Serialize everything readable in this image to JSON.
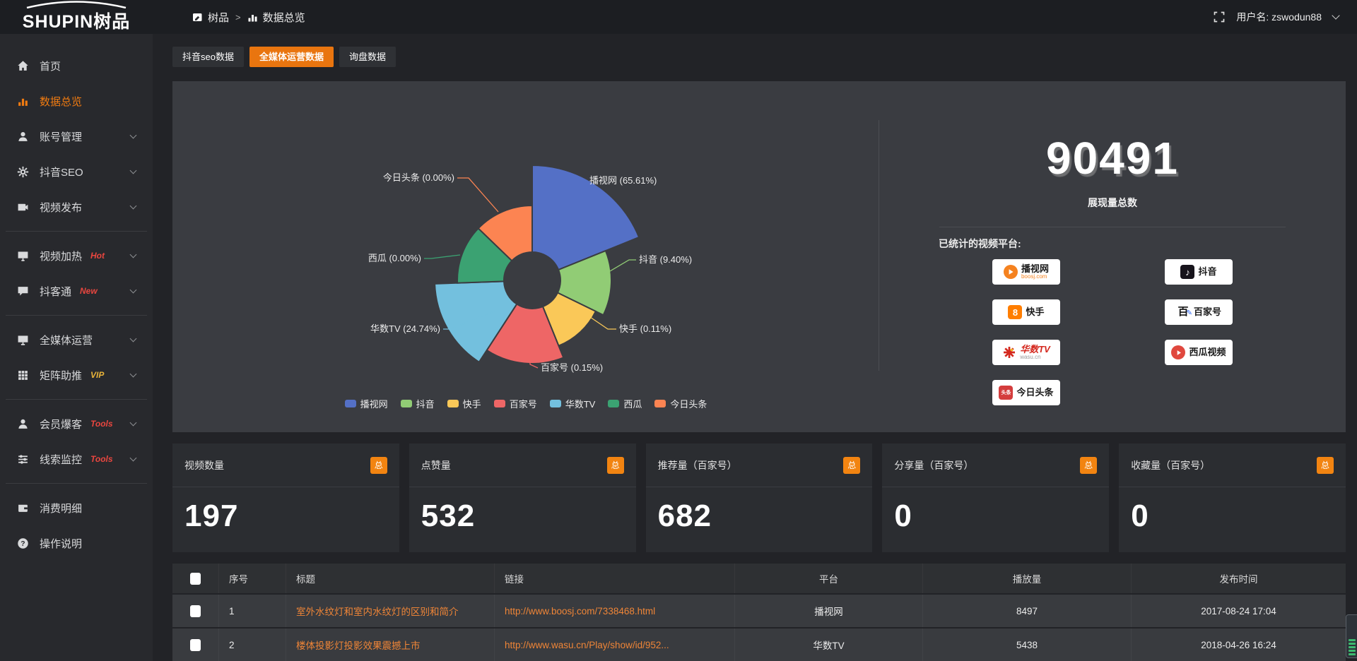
{
  "brand": {
    "logo_text": "SHUPIN树品"
  },
  "topbar": {
    "breadcrumb_root": "树品",
    "breadcrumb_sep": ">",
    "breadcrumb_current": "数据总览",
    "username_label": "用户名: zswodun88"
  },
  "sidebar": {
    "items": [
      {
        "label": "首页",
        "icon": "home"
      },
      {
        "label": "数据总览",
        "icon": "bar-chart",
        "active": true
      },
      {
        "label": "账号管理",
        "icon": "user",
        "arrow": true
      },
      {
        "label": "抖音SEO",
        "icon": "gear",
        "arrow": true
      },
      {
        "label": "视频发布",
        "icon": "video-publish",
        "arrow": true
      },
      {
        "divider": true
      },
      {
        "label": "视频加热",
        "icon": "monitor-play",
        "tag": "Hot",
        "tag_color": "#e9463f",
        "arrow": true
      },
      {
        "label": "抖客通",
        "icon": "chat",
        "tag": "New",
        "tag_color": "#e9463f",
        "arrow": true
      },
      {
        "divider": true
      },
      {
        "label": "全媒体运营",
        "icon": "monitor",
        "arrow": true
      },
      {
        "label": "矩阵助推",
        "icon": "grid",
        "tag": "VIP",
        "tag_color": "#e8b339",
        "arrow": true
      },
      {
        "divider": true
      },
      {
        "label": "会员爆客",
        "icon": "member",
        "tag": "Tools",
        "tag_color": "#e9463f",
        "arrow": true
      },
      {
        "label": "线索监控",
        "icon": "sliders",
        "tag": "Tools",
        "tag_color": "#e9463f",
        "arrow": true
      },
      {
        "divider": true
      },
      {
        "label": "消费明细",
        "icon": "wallet"
      },
      {
        "label": "操作说明",
        "icon": "help"
      }
    ]
  },
  "tabs": [
    {
      "label": "抖音seo数据",
      "active": false
    },
    {
      "label": "全媒体运营数据",
      "active": true
    },
    {
      "label": "询盘数据",
      "active": false
    }
  ],
  "chart_data": {
    "type": "pie",
    "variant": "nightingale-rose",
    "title": "",
    "legend_position": "bottom",
    "series": [
      {
        "name": "播视网",
        "percent": 65.61,
        "color": "#5470c6"
      },
      {
        "name": "抖音",
        "percent": 9.4,
        "color": "#91cc75"
      },
      {
        "name": "快手",
        "percent": 0.11,
        "color": "#fac858"
      },
      {
        "name": "百家号",
        "percent": 0.15,
        "color": "#ee6666"
      },
      {
        "name": "华数TV",
        "percent": 24.74,
        "color": "#73c0de"
      },
      {
        "name": "西瓜",
        "percent": 0.0,
        "color": "#3ba272"
      },
      {
        "name": "今日头条",
        "percent": 0.0,
        "color": "#fc8452"
      }
    ],
    "legend": [
      "播视网",
      "抖音",
      "快手",
      "百家号",
      "华数TV",
      "西瓜",
      "今日头条"
    ]
  },
  "summary": {
    "total_value": "90491",
    "total_label": "展现量总数",
    "platforms_label": "已统计的视频平台:",
    "platform_badges": [
      {
        "name": "播视网",
        "sub": "boosj.com",
        "icon": "boosj"
      },
      {
        "name": "抖音",
        "icon": "douyin"
      },
      {
        "name": "快手",
        "icon": "kuaishou"
      },
      {
        "name": "百家号",
        "icon": "baijiahao"
      },
      {
        "name": "华数TV",
        "sub": "wasu.cn",
        "icon": "wasu"
      },
      {
        "name": "西瓜视频",
        "icon": "xigua"
      },
      {
        "name": "今日头条",
        "icon": "toutiao"
      }
    ]
  },
  "stat_cards": [
    {
      "label": "视频数量",
      "badge": "总",
      "value": "197"
    },
    {
      "label": "点赞量",
      "badge": "总",
      "value": "532"
    },
    {
      "label": "推荐量（百家号）",
      "badge": "总",
      "value": "682"
    },
    {
      "label": "分享量（百家号）",
      "badge": "总",
      "value": "0"
    },
    {
      "label": "收藏量（百家号）",
      "badge": "总",
      "value": "0"
    }
  ],
  "table": {
    "headers": [
      "序号",
      "标题",
      "链接",
      "平台",
      "播放量",
      "发布时间"
    ],
    "rows": [
      {
        "seq": "1",
        "title": "室外水纹灯和室内水纹灯的区别和简介",
        "link": "http://www.boosj.com/7338468.html",
        "platform": "播视网",
        "plays": "8497",
        "time": "2017-08-24 17:04"
      },
      {
        "seq": "2",
        "title": "楼体投影灯投影效果震撼上市",
        "link": "http://www.wasu.cn/Play/show/id/952...",
        "platform": "华数TV",
        "plays": "5438",
        "time": "2018-04-26 16:24"
      }
    ]
  }
}
